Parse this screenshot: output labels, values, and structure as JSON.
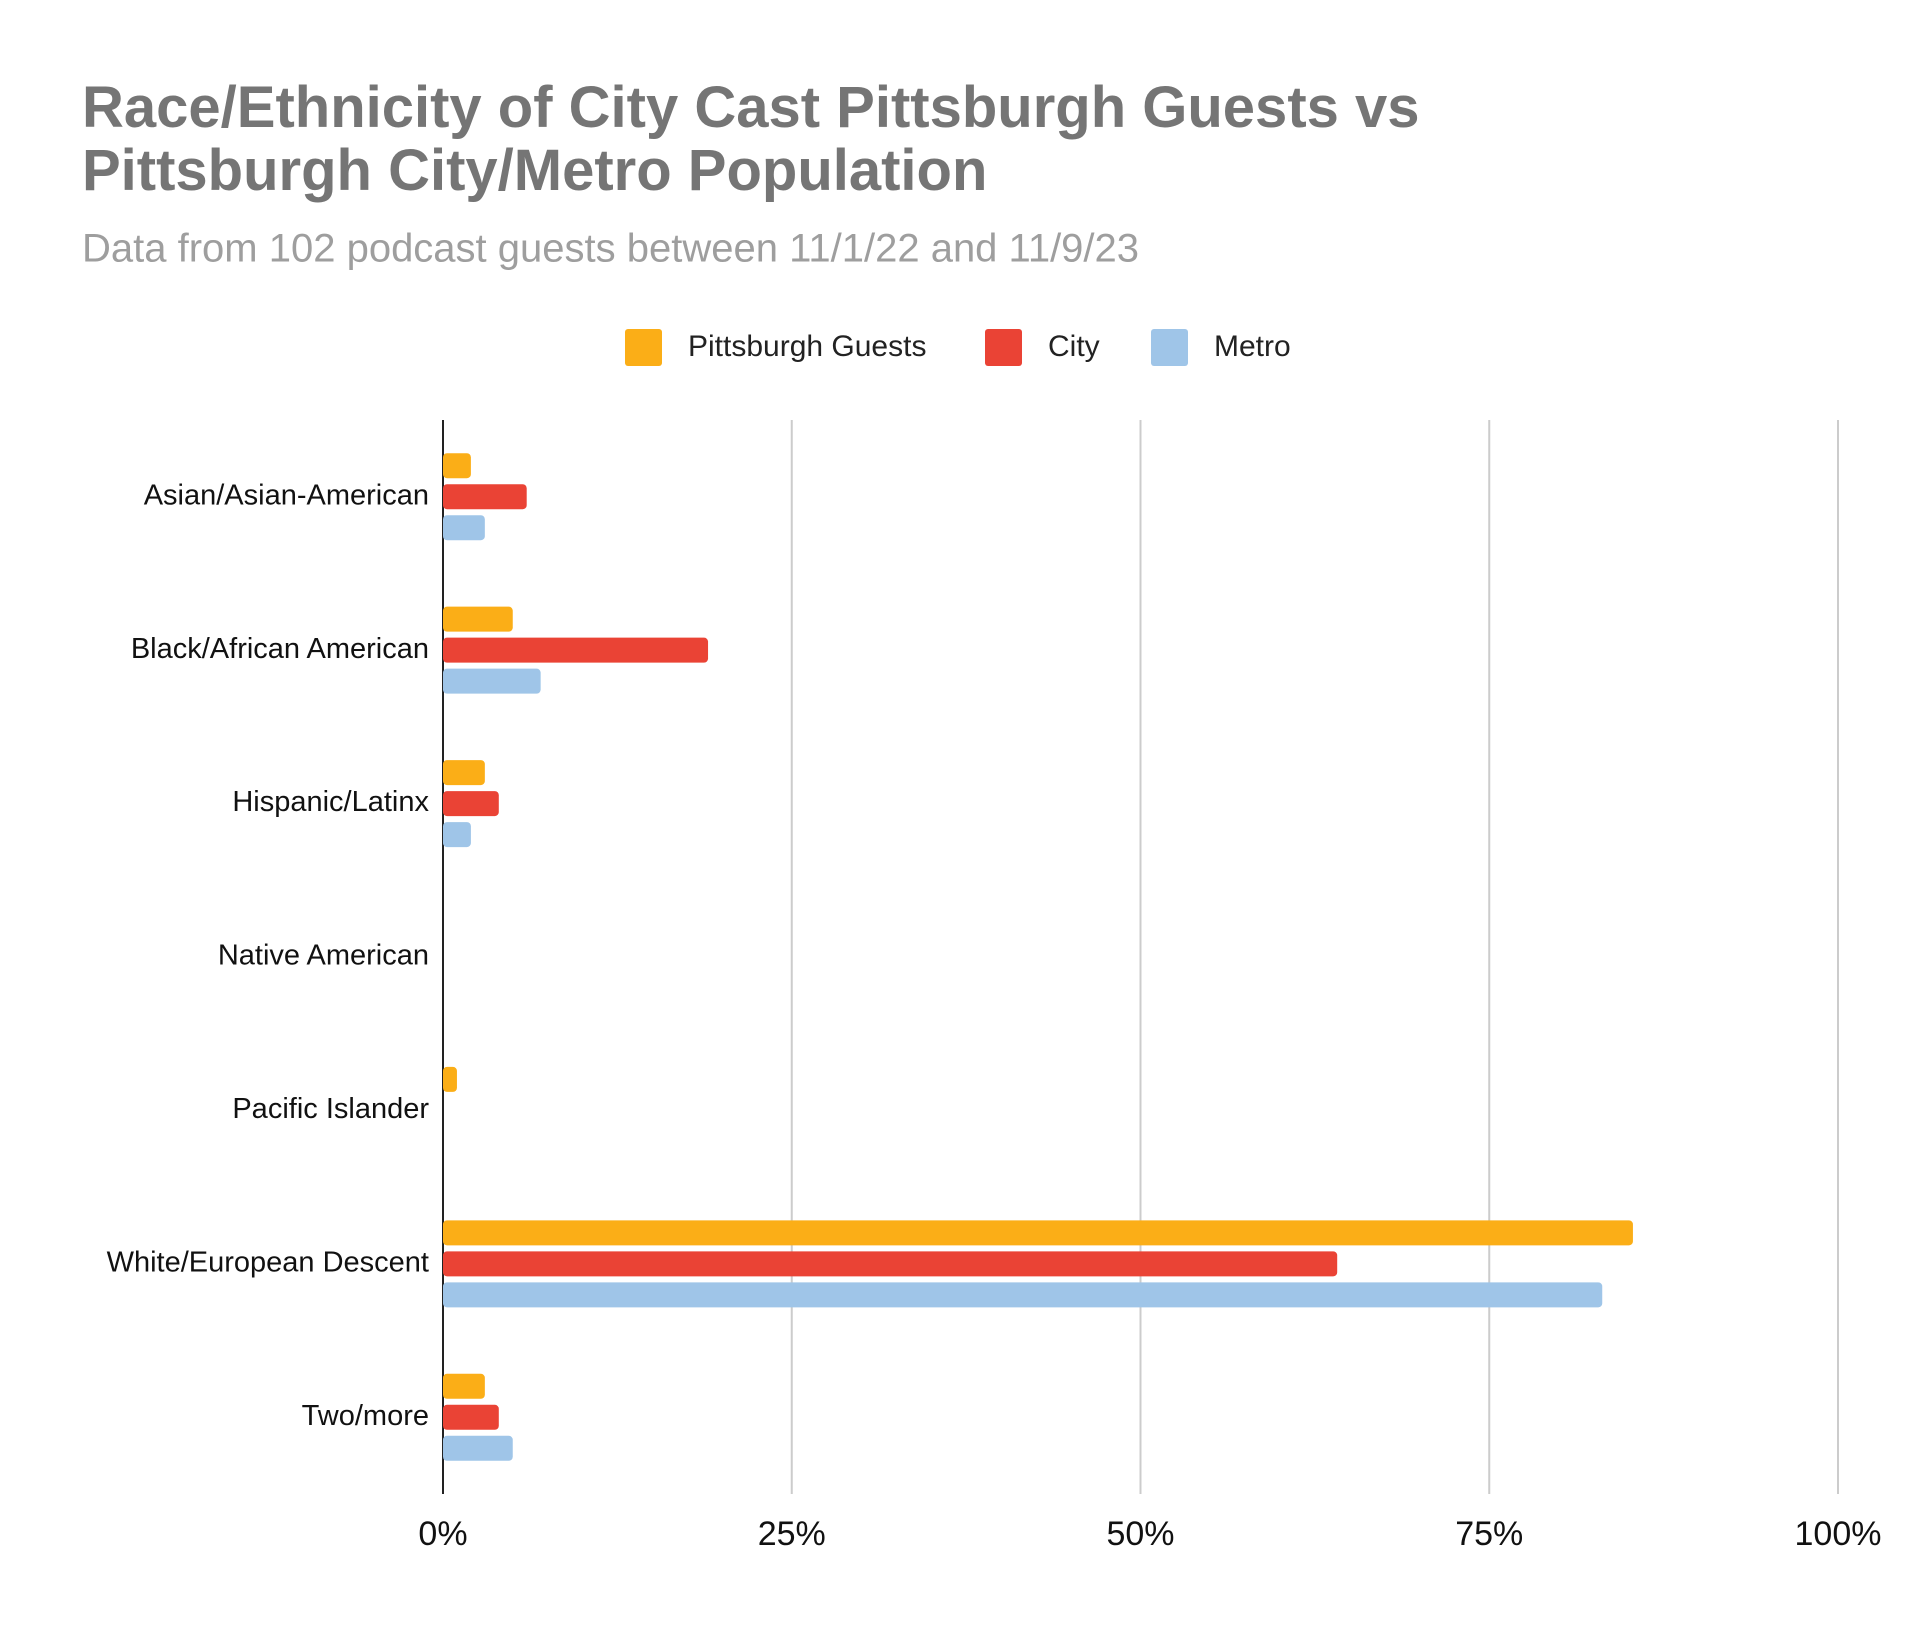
{
  "chart_data": {
    "type": "hbar",
    "title": "Race/Ethnicity of City Cast Pittsburgh Guests vs Pittsburgh City/Metro Population",
    "subtitle": "Data from 102 podcast guests between 11/1/22 and 11/9/23",
    "categories": [
      "Asian/Asian-American",
      "Black/African American",
      "Hispanic/Latinx",
      "Native American",
      "Pacific Islander",
      "White/European Descent",
      "Two/more"
    ],
    "series": [
      {
        "name": "Pittsburgh Guests",
        "color": "#fbae17",
        "values": [
          2,
          5,
          3,
          0,
          1,
          85.3,
          3
        ]
      },
      {
        "name": "City",
        "color": "#ea4335",
        "values": [
          6,
          19,
          4,
          0,
          0,
          64.1,
          4
        ]
      },
      {
        "name": "Metro",
        "color": "#9fc5e8",
        "values": [
          3,
          7,
          2,
          0,
          0,
          83.1,
          5
        ]
      }
    ],
    "xlim": [
      0,
      100
    ],
    "xticks": [
      {
        "value": 0,
        "label": "0%"
      },
      {
        "value": 25,
        "label": "25%"
      },
      {
        "value": 50,
        "label": "50%"
      },
      {
        "value": 75,
        "label": "75%"
      },
      {
        "value": 100,
        "label": "100%"
      }
    ],
    "grid": true,
    "legend": "top"
  }
}
